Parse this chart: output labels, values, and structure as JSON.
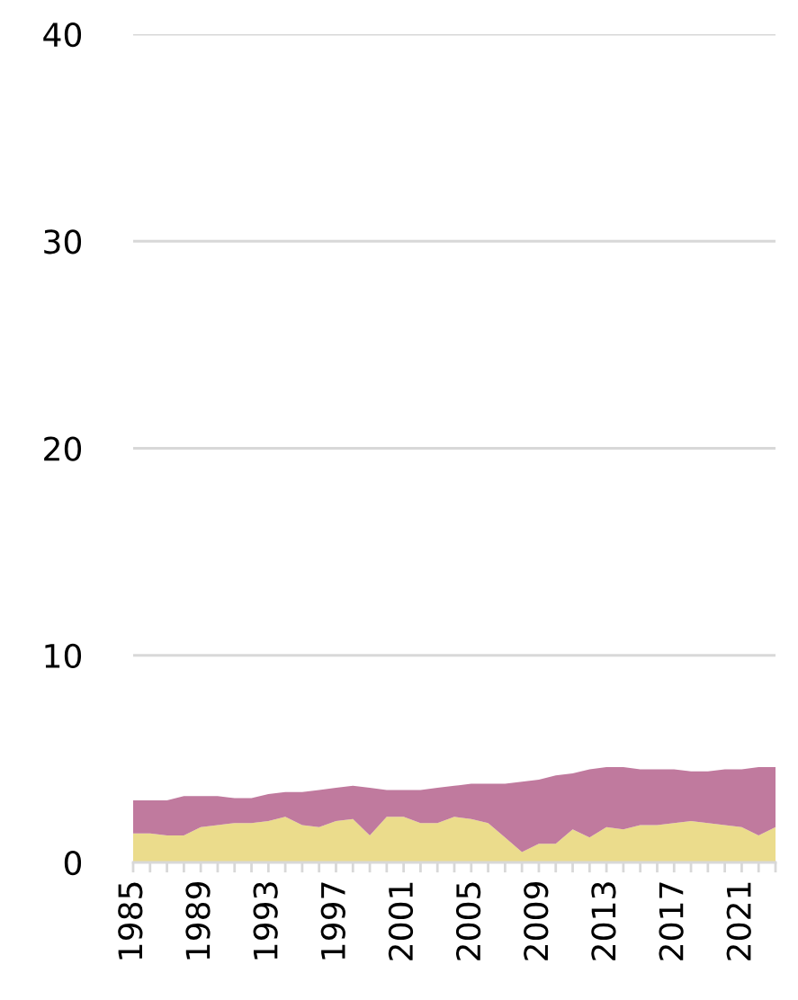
{
  "chart_data": {
    "type": "area",
    "stacked": true,
    "x": [
      1985,
      1986,
      1987,
      1988,
      1989,
      1990,
      1991,
      1992,
      1993,
      1994,
      1995,
      1996,
      1997,
      1998,
      1999,
      2000,
      2001,
      2002,
      2003,
      2004,
      2005,
      2006,
      2007,
      2008,
      2009,
      2010,
      2011,
      2012,
      2013,
      2014,
      2015,
      2016,
      2017,
      2018,
      2019,
      2020,
      2021,
      2022,
      2023
    ],
    "series": [
      {
        "color": "#ebdc8c",
        "values": [
          1.4,
          1.4,
          1.3,
          1.3,
          1.7,
          1.8,
          1.9,
          1.9,
          2.0,
          2.2,
          1.8,
          1.7,
          2.0,
          2.1,
          1.3,
          2.2,
          2.2,
          1.9,
          1.9,
          2.2,
          2.1,
          1.9,
          1.2,
          0.5,
          0.9,
          0.9,
          1.6,
          1.2,
          1.7,
          1.6,
          1.8,
          1.8,
          1.9,
          2.0,
          1.9,
          1.8,
          1.7,
          1.3,
          1.7
        ]
      },
      {
        "color": "#c07a9e",
        "values": [
          1.6,
          1.6,
          1.7,
          1.9,
          1.5,
          1.4,
          1.2,
          1.2,
          1.3,
          1.2,
          1.6,
          1.8,
          1.6,
          1.6,
          2.3,
          1.3,
          1.3,
          1.6,
          1.7,
          1.5,
          1.7,
          1.9,
          2.6,
          3.4,
          3.1,
          3.3,
          2.7,
          3.3,
          2.9,
          3.0,
          2.7,
          2.7,
          2.6,
          2.4,
          2.5,
          2.7,
          2.8,
          3.3,
          2.9
        ]
      }
    ],
    "xlim": [
      1985,
      2023
    ],
    "xticks": [
      {
        "value": 1985,
        "label": "1985"
      },
      {
        "value": 1986,
        "label": null
      },
      {
        "value": 1987,
        "label": null
      },
      {
        "value": 1988,
        "label": null
      },
      {
        "value": 1989,
        "label": "1989"
      },
      {
        "value": 1990,
        "label": null
      },
      {
        "value": 1991,
        "label": null
      },
      {
        "value": 1992,
        "label": null
      },
      {
        "value": 1993,
        "label": "1993"
      },
      {
        "value": 1994,
        "label": null
      },
      {
        "value": 1995,
        "label": null
      },
      {
        "value": 1996,
        "label": null
      },
      {
        "value": 1997,
        "label": "1997"
      },
      {
        "value": 1998,
        "label": null
      },
      {
        "value": 1999,
        "label": null
      },
      {
        "value": 2000,
        "label": null
      },
      {
        "value": 2001,
        "label": "2001"
      },
      {
        "value": 2002,
        "label": null
      },
      {
        "value": 2003,
        "label": null
      },
      {
        "value": 2004,
        "label": null
      },
      {
        "value": 2005,
        "label": "2005"
      },
      {
        "value": 2006,
        "label": null
      },
      {
        "value": 2007,
        "label": null
      },
      {
        "value": 2008,
        "label": null
      },
      {
        "value": 2009,
        "label": "2009"
      },
      {
        "value": 2010,
        "label": null
      },
      {
        "value": 2011,
        "label": null
      },
      {
        "value": 2012,
        "label": null
      },
      {
        "value": 2013,
        "label": "2013"
      },
      {
        "value": 2014,
        "label": null
      },
      {
        "value": 2015,
        "label": null
      },
      {
        "value": 2016,
        "label": null
      },
      {
        "value": 2017,
        "label": "2017"
      },
      {
        "value": 2018,
        "label": null
      },
      {
        "value": 2019,
        "label": null
      },
      {
        "value": 2020,
        "label": null
      },
      {
        "value": 2021,
        "label": "2021"
      },
      {
        "value": 2022,
        "label": null
      },
      {
        "value": 2023,
        "label": null
      }
    ],
    "ylim": [
      0,
      40
    ],
    "yticks": [
      0,
      10,
      20,
      30,
      40
    ],
    "grid": "y"
  }
}
